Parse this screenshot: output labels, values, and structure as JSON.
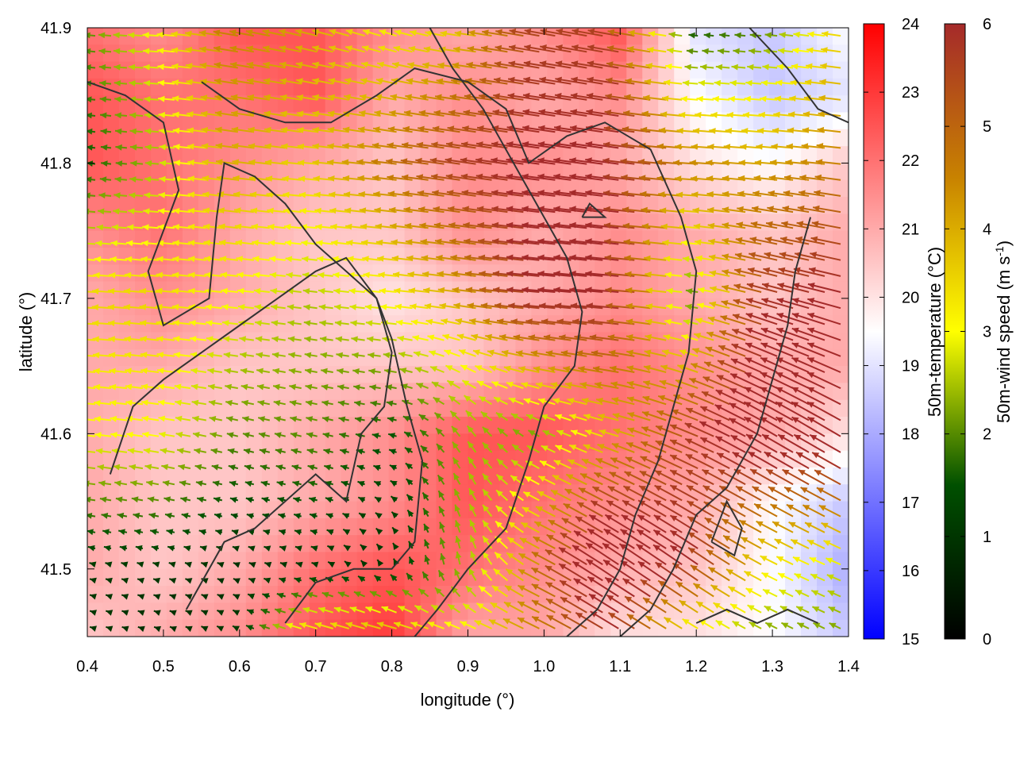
{
  "chart_data": {
    "type": "heatmap",
    "title": "",
    "xlabel": "longitude (°)",
    "ylabel": "latitude (°)",
    "xlim": [
      0.4,
      1.4
    ],
    "ylim": [
      41.45,
      41.9
    ],
    "x_ticks": [
      "0.4",
      "0.5",
      "0.6",
      "0.7",
      "0.8",
      "0.9",
      "1.0",
      "1.1",
      "1.2",
      "1.3",
      "1.4"
    ],
    "y_ticks": [
      "41.5",
      "41.6",
      "41.7",
      "41.8",
      "41.9"
    ],
    "grid": false,
    "legend": "none",
    "colorbars": [
      {
        "label": "50m-temperature (°C)",
        "range": [
          15,
          24
        ],
        "ticks": [
          "15",
          "16",
          "17",
          "18",
          "19",
          "20",
          "21",
          "22",
          "23",
          "24"
        ],
        "colors": [
          "#0000ff",
          "#ffffff",
          "#ff0000"
        ]
      },
      {
        "label_main": "50m-wind speed (m s",
        "label_sup": "-1",
        "label_end": ")",
        "range": [
          0,
          6
        ],
        "ticks": [
          "0",
          "1",
          "2",
          "3",
          "4",
          "5",
          "6"
        ],
        "colors": [
          "#000000",
          "#005000",
          "#ffff00",
          "#c88200",
          "#a52a2a"
        ]
      }
    ],
    "temperature_field": {
      "description_units": "°C",
      "lon": [
        0.4,
        0.5,
        0.6,
        0.7,
        0.8,
        0.9,
        1.0,
        1.1,
        1.2,
        1.3,
        1.4
      ],
      "lat": [
        41.9,
        41.85,
        41.8,
        41.75,
        41.7,
        41.65,
        41.6,
        41.55,
        41.5,
        41.45
      ],
      "values": [
        [
          22.0,
          21.5,
          22.5,
          22.5,
          21.5,
          21.0,
          21.5,
          22.5,
          19.0,
          18.5,
          19.5
        ],
        [
          22.5,
          22.0,
          22.0,
          22.5,
          21.0,
          21.5,
          21.0,
          21.5,
          19.5,
          18.5,
          19.0
        ],
        [
          22.5,
          22.0,
          21.5,
          21.0,
          20.5,
          21.5,
          21.5,
          21.0,
          20.0,
          19.5,
          20.5
        ],
        [
          21.5,
          22.0,
          21.0,
          20.5,
          20.5,
          21.5,
          21.0,
          21.5,
          21.0,
          20.5,
          21.0
        ],
        [
          21.0,
          21.5,
          21.0,
          20.5,
          20.0,
          20.5,
          21.0,
          21.5,
          21.0,
          20.5,
          21.0
        ],
        [
          21.0,
          21.0,
          20.5,
          20.5,
          20.5,
          20.5,
          21.5,
          22.0,
          21.5,
          21.0,
          21.0
        ],
        [
          21.0,
          20.5,
          20.5,
          21.0,
          21.5,
          22.5,
          22.5,
          22.0,
          21.5,
          21.0,
          20.0
        ],
        [
          21.0,
          20.5,
          20.5,
          21.0,
          21.5,
          22.5,
          22.0,
          21.5,
          21.0,
          19.5,
          18.5
        ],
        [
          21.0,
          20.5,
          21.0,
          22.0,
          22.5,
          22.0,
          21.5,
          21.0,
          20.5,
          19.5,
          18.0
        ],
        [
          20.5,
          21.0,
          21.5,
          22.5,
          23.0,
          21.0,
          21.0,
          20.0,
          20.0,
          19.5,
          18.5
        ]
      ]
    },
    "wind_field": {
      "units": "m s-1",
      "lon": [
        0.4,
        0.5,
        0.6,
        0.7,
        0.8,
        0.9,
        1.0,
        1.1,
        1.2,
        1.3,
        1.4
      ],
      "lat": [
        41.9,
        41.8,
        41.7,
        41.6,
        41.5,
        41.45
      ],
      "u": [
        [
          -2.0,
          -3.0,
          -4.5,
          -4.0,
          -3.0,
          -3.5,
          -5.5,
          -5.5,
          -1.5,
          -2.0,
          -3.5
        ],
        [
          -1.5,
          -2.5,
          -4.0,
          -3.5,
          -4.5,
          -5.5,
          -6.0,
          -6.0,
          -4.5,
          -4.0,
          -4.5
        ],
        [
          -3.5,
          -3.5,
          -3.0,
          -2.5,
          -3.0,
          -4.0,
          -6.0,
          -6.0,
          -2.0,
          -5.5,
          -6.0
        ],
        [
          -3.0,
          -3.0,
          -2.0,
          -2.0,
          -1.5,
          -1.5,
          -2.0,
          -3.5,
          -5.0,
          -6.0,
          -6.0
        ],
        [
          -1.0,
          -1.0,
          -0.8,
          -1.0,
          -0.5,
          -0.5,
          -4.0,
          -6.0,
          -5.0,
          -3.0,
          -2.5
        ],
        [
          -1.0,
          -0.8,
          -1.0,
          -3.5,
          -4.0,
          -3.0,
          -4.0,
          -5.0,
          -2.5,
          -2.0,
          -2.0
        ]
      ],
      "v": [
        [
          0.2,
          0.2,
          0.8,
          1.0,
          1.0,
          0.5,
          1.0,
          1.0,
          0.2,
          0.2,
          0.5
        ],
        [
          0.2,
          0.2,
          0.5,
          0.3,
          0.5,
          0.8,
          0.8,
          0.8,
          0.3,
          0.3,
          0.5
        ],
        [
          0.2,
          0.3,
          0.3,
          0.3,
          0.3,
          0.5,
          0.5,
          0.5,
          0.3,
          1.5,
          1.5
        ],
        [
          0.3,
          0.5,
          0.5,
          0.5,
          0.3,
          2.0,
          1.0,
          1.0,
          2.0,
          3.5,
          3.5
        ],
        [
          0.3,
          0.3,
          0.3,
          0.3,
          1.0,
          2.5,
          2.0,
          4.0,
          3.5,
          1.5,
          1.0
        ],
        [
          0.3,
          0.3,
          0.5,
          1.0,
          1.0,
          1.0,
          2.0,
          3.0,
          1.5,
          1.0,
          1.0
        ]
      ]
    },
    "contour_lines": [
      [
        [
          0.4,
          41.86
        ],
        [
          0.45,
          41.85
        ],
        [
          0.5,
          41.83
        ],
        [
          0.52,
          41.78
        ],
        [
          0.5,
          41.75
        ],
        [
          0.48,
          41.72
        ],
        [
          0.5,
          41.68
        ],
        [
          0.56,
          41.7
        ],
        [
          0.57,
          41.76
        ],
        [
          0.58,
          41.8
        ],
        [
          0.62,
          41.79
        ],
        [
          0.66,
          41.77
        ],
        [
          0.7,
          41.74
        ],
        [
          0.74,
          41.72
        ],
        [
          0.78,
          41.7
        ],
        [
          0.8,
          41.66
        ],
        [
          0.79,
          41.62
        ],
        [
          0.76,
          41.6
        ],
        [
          0.74,
          41.55
        ],
        [
          0.7,
          41.57
        ],
        [
          0.66,
          41.55
        ],
        [
          0.62,
          41.53
        ],
        [
          0.58,
          41.52
        ],
        [
          0.53,
          41.47
        ]
      ],
      [
        [
          0.43,
          41.57
        ],
        [
          0.46,
          41.62
        ],
        [
          0.5,
          41.64
        ],
        [
          0.55,
          41.66
        ],
        [
          0.6,
          41.68
        ],
        [
          0.65,
          41.7
        ],
        [
          0.7,
          41.72
        ],
        [
          0.74,
          41.73
        ],
        [
          0.78,
          41.7
        ],
        [
          0.8,
          41.67
        ],
        [
          0.82,
          41.62
        ],
        [
          0.84,
          41.58
        ],
        [
          0.83,
          41.52
        ],
        [
          0.8,
          41.5
        ],
        [
          0.75,
          41.5
        ],
        [
          0.7,
          41.49
        ],
        [
          0.66,
          41.46
        ]
      ],
      [
        [
          0.55,
          41.86
        ],
        [
          0.6,
          41.84
        ],
        [
          0.66,
          41.83
        ],
        [
          0.72,
          41.83
        ],
        [
          0.78,
          41.85
        ],
        [
          0.83,
          41.87
        ],
        [
          0.9,
          41.86
        ],
        [
          0.95,
          41.84
        ],
        [
          0.98,
          41.8
        ],
        [
          1.03,
          41.82
        ],
        [
          1.08,
          41.83
        ],
        [
          1.14,
          41.81
        ],
        [
          1.18,
          41.76
        ],
        [
          1.2,
          41.72
        ],
        [
          1.19,
          41.66
        ],
        [
          1.17,
          41.62
        ],
        [
          1.15,
          41.58
        ],
        [
          1.12,
          41.54
        ],
        [
          1.1,
          41.5
        ],
        [
          1.07,
          41.47
        ],
        [
          1.03,
          41.45
        ]
      ],
      [
        [
          0.85,
          41.9
        ],
        [
          0.88,
          41.87
        ],
        [
          0.92,
          41.84
        ],
        [
          0.97,
          41.79
        ],
        [
          1.0,
          41.76
        ],
        [
          1.03,
          41.73
        ],
        [
          1.05,
          41.69
        ],
        [
          1.04,
          41.65
        ],
        [
          1.0,
          41.62
        ],
        [
          0.98,
          41.58
        ],
        [
          0.95,
          41.53
        ],
        [
          0.9,
          41.5
        ],
        [
          0.86,
          41.47
        ],
        [
          0.83,
          41.45
        ]
      ],
      [
        [
          1.27,
          41.9
        ],
        [
          1.32,
          41.87
        ],
        [
          1.36,
          41.84
        ],
        [
          1.4,
          41.83
        ]
      ],
      [
        [
          1.35,
          41.76
        ],
        [
          1.33,
          41.72
        ],
        [
          1.32,
          41.68
        ],
        [
          1.3,
          41.64
        ],
        [
          1.28,
          41.6
        ],
        [
          1.24,
          41.56
        ],
        [
          1.2,
          41.54
        ],
        [
          1.17,
          41.5
        ],
        [
          1.14,
          41.47
        ],
        [
          1.1,
          41.45
        ]
      ],
      [
        [
          1.2,
          41.46
        ],
        [
          1.24,
          41.47
        ],
        [
          1.28,
          41.46
        ],
        [
          1.32,
          41.47
        ],
        [
          1.36,
          41.46
        ]
      ],
      [
        [
          1.22,
          41.52
        ],
        [
          1.25,
          41.51
        ],
        [
          1.26,
          41.53
        ],
        [
          1.24,
          41.55
        ],
        [
          1.22,
          41.52
        ]
      ],
      [
        [
          1.05,
          41.76
        ],
        [
          1.08,
          41.76
        ],
        [
          1.06,
          41.77
        ],
        [
          1.05,
          41.76
        ]
      ]
    ]
  }
}
